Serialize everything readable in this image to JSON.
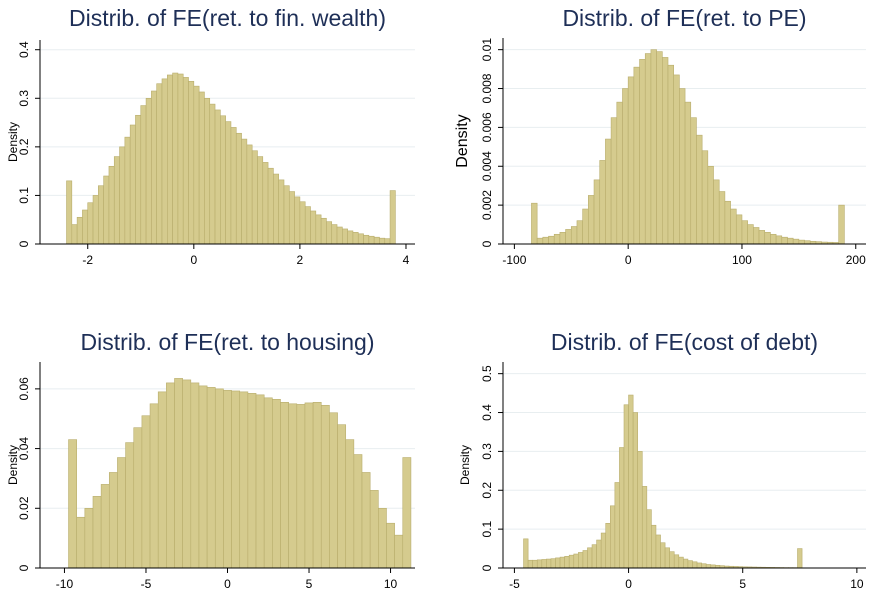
{
  "chart_data": [
    {
      "type": "histogram",
      "title": "Distrib. of FE(ret. to fin. wealth)",
      "ylabel": "Density",
      "color": "#d5cb8e",
      "grid": true,
      "bins": [
        -2.4,
        -2.3,
        -2.2,
        -2.1,
        -2.0,
        -1.9,
        -1.8,
        -1.7,
        -1.6,
        -1.5,
        -1.4,
        -1.3,
        -1.2,
        -1.1,
        -1.0,
        -0.9,
        -0.8,
        -0.7,
        -0.6,
        -0.5,
        -0.4,
        -0.3,
        -0.2,
        -0.1,
        0,
        0.1,
        0.2,
        0.3,
        0.4,
        0.5,
        0.6,
        0.7,
        0.8,
        0.9,
        1.0,
        1.1,
        1.2,
        1.3,
        1.4,
        1.5,
        1.6,
        1.7,
        1.8,
        1.9,
        2.0,
        2.1,
        2.2,
        2.3,
        2.4,
        2.5,
        2.6,
        2.7,
        2.8,
        2.9,
        3.0,
        3.1,
        3.2,
        3.3,
        3.4,
        3.5,
        3.6,
        3.7,
        3.8
      ],
      "values": [
        0.13,
        0.04,
        0.055,
        0.07,
        0.085,
        0.1,
        0.12,
        0.14,
        0.16,
        0.18,
        0.2,
        0.22,
        0.245,
        0.265,
        0.285,
        0.3,
        0.315,
        0.33,
        0.34,
        0.348,
        0.352,
        0.35,
        0.343,
        0.335,
        0.325,
        0.313,
        0.3,
        0.288,
        0.276,
        0.264,
        0.252,
        0.24,
        0.228,
        0.216,
        0.204,
        0.192,
        0.18,
        0.168,
        0.156,
        0.144,
        0.132,
        0.12,
        0.108,
        0.097,
        0.087,
        0.077,
        0.068,
        0.06,
        0.053,
        0.046,
        0.04,
        0.035,
        0.031,
        0.027,
        0.024,
        0.021,
        0.018,
        0.016,
        0.014,
        0.012,
        0.011,
        0.11
      ],
      "xlim": [
        -2.9,
        4.17
      ],
      "ylim": [
        0,
        0.42
      ],
      "xticks": [
        -2,
        0,
        2,
        4
      ],
      "yticks": [
        0,
        0.1,
        0.2,
        0.3,
        0.4
      ]
    },
    {
      "type": "histogram",
      "title": "Distrib. of FE(ret. to PE)",
      "ylabel": "Density",
      "color": "#d5cb8e",
      "grid": true,
      "bins": [
        -85,
        -80,
        -75,
        -70,
        -65,
        -60,
        -55,
        -50,
        -45,
        -40,
        -35,
        -30,
        -25,
        -20,
        -15,
        -10,
        -5,
        0,
        5,
        10,
        15,
        20,
        25,
        30,
        35,
        40,
        45,
        50,
        55,
        60,
        65,
        70,
        75,
        80,
        85,
        90,
        95,
        100,
        105,
        110,
        115,
        120,
        125,
        130,
        135,
        140,
        145,
        150,
        155,
        160,
        165,
        170,
        175,
        180,
        185,
        190
      ],
      "values": [
        0.0021,
        0.0003,
        0.00035,
        0.0004,
        0.0005,
        0.0006,
        0.00075,
        0.0009,
        0.0012,
        0.0018,
        0.0025,
        0.0033,
        0.0043,
        0.0054,
        0.0065,
        0.0073,
        0.008,
        0.0086,
        0.0091,
        0.0095,
        0.0098,
        0.01,
        0.0099,
        0.0096,
        0.0092,
        0.0087,
        0.008,
        0.0073,
        0.0065,
        0.0056,
        0.0048,
        0.004,
        0.0033,
        0.0027,
        0.0022,
        0.0018,
        0.0015,
        0.0012,
        0.001,
        0.00085,
        0.0007,
        0.0006,
        0.0005,
        0.00042,
        0.00035,
        0.0003,
        0.00025,
        0.0002,
        0.00017,
        0.00014,
        0.00012,
        0.0001,
        9e-05,
        8e-05,
        0.002
      ],
      "xlim": [
        -110,
        209
      ],
      "ylim": [
        0,
        0.0106
      ],
      "xticks": [
        -100,
        0,
        100,
        200
      ],
      "yticks": [
        0,
        0.002,
        0.004,
        0.006,
        0.008,
        0.01
      ]
    },
    {
      "type": "histogram",
      "title": "Distrib. of FE(ret. to housing)",
      "ylabel": "Density",
      "color": "#d5cb8e",
      "grid": true,
      "bins": [
        -9.75,
        -9.25,
        -8.75,
        -8.25,
        -7.75,
        -7.25,
        -6.75,
        -6.25,
        -5.75,
        -5.25,
        -4.75,
        -4.25,
        -3.75,
        -3.25,
        -2.75,
        -2.25,
        -1.75,
        -1.25,
        -0.75,
        -0.25,
        0.25,
        0.75,
        1.25,
        1.75,
        2.25,
        2.75,
        3.25,
        3.75,
        4.25,
        4.75,
        5.25,
        5.75,
        6.25,
        6.75,
        7.25,
        7.75,
        8.25,
        8.75,
        9.25,
        9.75,
        10.25,
        10.75,
        11.25
      ],
      "values": [
        0.043,
        0.017,
        0.02,
        0.024,
        0.028,
        0.032,
        0.037,
        0.042,
        0.047,
        0.051,
        0.055,
        0.059,
        0.062,
        0.0635,
        0.063,
        0.062,
        0.061,
        0.0605,
        0.06,
        0.0595,
        0.0593,
        0.059,
        0.0585,
        0.058,
        0.057,
        0.0565,
        0.0555,
        0.055,
        0.0548,
        0.0553,
        0.0555,
        0.0545,
        0.052,
        0.048,
        0.043,
        0.038,
        0.032,
        0.026,
        0.02,
        0.015,
        0.011,
        0.037
      ],
      "xlim": [
        -11.5,
        11.5
      ],
      "ylim": [
        0,
        0.069
      ],
      "xticks": [
        -10,
        -5,
        0,
        5,
        10
      ],
      "yticks": [
        0,
        0.02,
        0.04,
        0.06
      ]
    },
    {
      "type": "histogram",
      "title": "Distrib. of FE(cost of debt)",
      "ylabel": "Density",
      "color": "#d5cb8e",
      "grid": true,
      "bins": [
        -4.6,
        -4.4,
        -4.2,
        -4.0,
        -3.8,
        -3.6,
        -3.4,
        -3.2,
        -3.0,
        -2.8,
        -2.6,
        -2.4,
        -2.2,
        -2.0,
        -1.8,
        -1.6,
        -1.4,
        -1.2,
        -1.0,
        -0.8,
        -0.6,
        -0.4,
        -0.2,
        0,
        0.2,
        0.4,
        0.6,
        0.8,
        1.0,
        1.2,
        1.4,
        1.6,
        1.8,
        2.0,
        2.2,
        2.4,
        2.6,
        2.8,
        3.0,
        3.2,
        3.4,
        3.6,
        3.8,
        4.0,
        4.2,
        4.4,
        4.6,
        4.8,
        5.0,
        5.2,
        5.4,
        5.6,
        5.8,
        6.0,
        6.2,
        6.4,
        6.6,
        6.8,
        7.0,
        7.2,
        7.4,
        7.6
      ],
      "values": [
        0.075,
        0.02,
        0.02,
        0.021,
        0.022,
        0.023,
        0.024,
        0.026,
        0.028,
        0.03,
        0.033,
        0.036,
        0.04,
        0.045,
        0.052,
        0.06,
        0.072,
        0.09,
        0.115,
        0.16,
        0.22,
        0.31,
        0.42,
        0.445,
        0.4,
        0.3,
        0.21,
        0.15,
        0.11,
        0.085,
        0.065,
        0.052,
        0.042,
        0.034,
        0.028,
        0.023,
        0.019,
        0.016,
        0.013,
        0.011,
        0.009,
        0.008,
        0.007,
        0.006,
        0.005,
        0.0045,
        0.004,
        0.0035,
        0.003,
        0.0028,
        0.0025,
        0.0022,
        0.002,
        0.0018,
        0.0016,
        0.0014,
        0.0012,
        0.001,
        0.001,
        0.0009,
        0.05
      ],
      "xlim": [
        -5.5,
        10.4
      ],
      "ylim": [
        0,
        0.53
      ],
      "xticks": [
        -5,
        0,
        5,
        10
      ],
      "yticks": [
        0,
        0.1,
        0.2,
        0.3,
        0.4,
        0.5
      ]
    }
  ]
}
